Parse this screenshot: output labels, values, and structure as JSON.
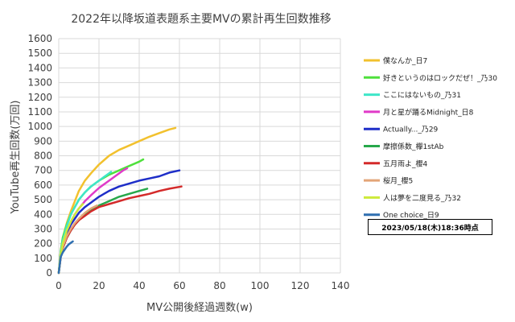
{
  "chart_data": {
    "type": "line",
    "title": "2022年以降坂道表題系主要MVの累計再生回数推移",
    "xlabel": "MV公開後経過週数(w)",
    "ylabel": "YouTube再生回数(万回)",
    "xlim": [
      0,
      140
    ],
    "ylim": [
      0,
      1600
    ],
    "xticks": [
      0,
      20,
      40,
      60,
      80,
      100,
      120,
      140
    ],
    "yticks": [
      0,
      100,
      200,
      300,
      400,
      500,
      600,
      700,
      800,
      900,
      1000,
      1100,
      1200,
      1300,
      1400,
      1500,
      1600
    ],
    "grid": true,
    "legend_position": "right",
    "series": [
      {
        "name": "僕なんか_日7",
        "color": "#F2C12E",
        "x": [
          0,
          1,
          2,
          4,
          6,
          8,
          10,
          13,
          16,
          20,
          25,
          30,
          35,
          40,
          45,
          50,
          55,
          58
        ],
        "y": [
          0,
          150,
          240,
          340,
          420,
          490,
          560,
          630,
          680,
          740,
          800,
          840,
          870,
          900,
          930,
          955,
          980,
          990
        ]
      },
      {
        "name": "好きというのはロックだぜ！_乃30",
        "color": "#4FE03C",
        "x": [
          0,
          1,
          2,
          4,
          6,
          8,
          10,
          13,
          16,
          20,
          25,
          30,
          35,
          40,
          42
        ],
        "y": [
          0,
          150,
          240,
          330,
          400,
          450,
          500,
          550,
          590,
          630,
          670,
          700,
          730,
          760,
          775
        ]
      },
      {
        "name": "ここにはないもの_乃31",
        "color": "#3EE6C8",
        "x": [
          0,
          1,
          2,
          4,
          6,
          8,
          10,
          13,
          16,
          20,
          24,
          26
        ],
        "y": [
          0,
          140,
          220,
          320,
          400,
          450,
          500,
          550,
          590,
          630,
          670,
          690
        ]
      },
      {
        "name": "月と星が踊るMidnight_日8",
        "color": "#E03AC8",
        "x": [
          0,
          1,
          2,
          4,
          6,
          8,
          10,
          13,
          16,
          20,
          24,
          28,
          32,
          34
        ],
        "y": [
          0,
          120,
          190,
          280,
          350,
          400,
          440,
          490,
          530,
          580,
          620,
          660,
          700,
          715
        ]
      },
      {
        "name": "Actually..._乃29",
        "color": "#1E2EC8",
        "x": [
          0,
          1,
          2,
          4,
          6,
          8,
          10,
          13,
          16,
          20,
          25,
          30,
          35,
          40,
          45,
          50,
          55,
          60
        ],
        "y": [
          0,
          120,
          190,
          270,
          330,
          370,
          410,
          450,
          480,
          520,
          560,
          590,
          610,
          630,
          645,
          660,
          685,
          700
        ]
      },
      {
        "name": "摩擦係数_欅1stAb",
        "color": "#27A84B",
        "x": [
          0,
          1,
          2,
          4,
          6,
          8,
          10,
          13,
          16,
          20,
          25,
          30,
          35,
          40,
          44
        ],
        "y": [
          0,
          110,
          170,
          240,
          290,
          330,
          360,
          400,
          430,
          460,
          490,
          520,
          540,
          560,
          575
        ]
      },
      {
        "name": "五月雨よ_櫻4",
        "color": "#D42A2A",
        "x": [
          0,
          1,
          2,
          4,
          6,
          8,
          10,
          13,
          16,
          20,
          25,
          30,
          35,
          40,
          45,
          50,
          55,
          61
        ],
        "y": [
          0,
          110,
          170,
          240,
          290,
          330,
          360,
          390,
          420,
          450,
          470,
          490,
          510,
          525,
          540,
          560,
          575,
          590
        ]
      },
      {
        "name": "桜月_櫻5",
        "color": "#E3A578",
        "x": [
          0,
          1,
          2,
          4,
          6,
          8,
          10,
          13,
          16,
          19
        ],
        "y": [
          0,
          120,
          180,
          250,
          300,
          340,
          370,
          410,
          440,
          460
        ]
      },
      {
        "name": "人は夢を二度見る_乃32",
        "color": "#CDEA3A",
        "x": [
          0,
          1,
          2,
          4,
          6,
          8,
          10,
          12
        ],
        "y": [
          0,
          130,
          200,
          290,
          350,
          400,
          440,
          470
        ]
      },
      {
        "name": "One choice_日9",
        "color": "#2F6FB0",
        "x": [
          0,
          0.5,
          1,
          2,
          3,
          4,
          5,
          6,
          7
        ],
        "y": [
          0,
          60,
          110,
          140,
          160,
          180,
          195,
          205,
          215
        ]
      }
    ],
    "annotation": "2023/05/18(木)18:36時点"
  }
}
